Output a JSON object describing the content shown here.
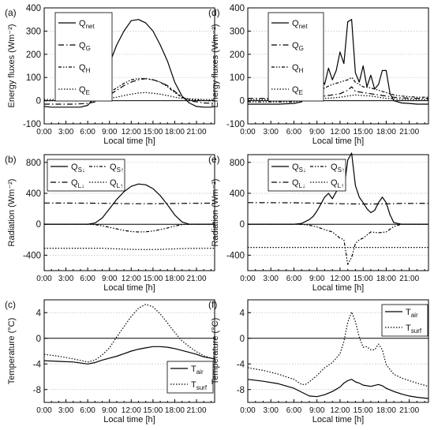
{
  "time_ticks": [
    "0:00",
    "3:00",
    "6:00",
    "9:00",
    "12:00",
    "15:00",
    "18:00",
    "21:00"
  ],
  "xlabel": "Local time [h]",
  "colors": {
    "line": "#000000",
    "grid": "#bdbdbd",
    "background": "#ffffff"
  },
  "chart_data": [
    {
      "panel": "(a)",
      "type": "line",
      "position": "top-left",
      "ylabel": "Energy fluxes (Wm⁻²)",
      "xlabel": "Local time [h]",
      "xlim": [
        0,
        23.5
      ],
      "ylim": [
        -100,
        400
      ],
      "yticks": [
        -100,
        0,
        100,
        200,
        300,
        400
      ],
      "grid": true,
      "legend_position": "top-left",
      "series": [
        {
          "name": "Q",
          "sub": "net",
          "style": "solid",
          "x": [
            0,
            1,
            2,
            3,
            4,
            5,
            6,
            7,
            8,
            9,
            10,
            11,
            12,
            13,
            14,
            15,
            16,
            17,
            18,
            19,
            20,
            21,
            22,
            23,
            23.5
          ],
          "values": [
            -25,
            -28,
            -28,
            -28,
            -28,
            -28,
            -20,
            15,
            80,
            160,
            240,
            300,
            345,
            350,
            335,
            300,
            240,
            170,
            80,
            20,
            -10,
            -25,
            -28,
            -28,
            -25
          ]
        },
        {
          "name": "Q",
          "sub": "G",
          "style": "dashdot",
          "x": [
            0,
            2,
            4,
            6,
            7,
            8,
            9,
            10,
            11,
            12,
            13,
            14,
            15,
            16,
            17,
            18,
            19,
            20,
            22,
            23.5
          ],
          "values": [
            -15,
            -15,
            -15,
            -12,
            -5,
            10,
            25,
            45,
            65,
            80,
            90,
            95,
            90,
            80,
            65,
            40,
            15,
            0,
            -10,
            -12
          ]
        },
        {
          "name": "Q",
          "sub": "H",
          "style": "dashdot2",
          "x": [
            0,
            2,
            4,
            6,
            7,
            8,
            9,
            10,
            11,
            12,
            13,
            14,
            15,
            16,
            17,
            18,
            19,
            20,
            22,
            23.5
          ],
          "values": [
            0,
            0,
            0,
            0,
            2,
            15,
            35,
            55,
            75,
            90,
            95,
            95,
            90,
            80,
            60,
            35,
            15,
            5,
            0,
            0
          ]
        },
        {
          "name": "Q",
          "sub": "E",
          "style": "dotted",
          "x": [
            0,
            2,
            4,
            6,
            7,
            8,
            9,
            10,
            11,
            12,
            13,
            14,
            15,
            16,
            17,
            18,
            19,
            20,
            22,
            23.5
          ],
          "values": [
            5,
            5,
            5,
            5,
            5,
            5,
            10,
            15,
            22,
            28,
            33,
            35,
            32,
            28,
            22,
            15,
            10,
            8,
            5,
            5
          ]
        }
      ]
    },
    {
      "panel": "(d)",
      "type": "line",
      "position": "top-right",
      "ylabel": "Energy fluxes (Wm⁻²)",
      "xlabel": "Local time [h]",
      "xlim": [
        0,
        23.5
      ],
      "ylim": [
        -100,
        400
      ],
      "yticks": [
        -100,
        0,
        100,
        200,
        300,
        400
      ],
      "grid": true,
      "legend_position": "top-left",
      "series": [
        {
          "name": "Q",
          "sub": "net",
          "style": "solid",
          "x": [
            0,
            2,
            4,
            6,
            7,
            7.5,
            8,
            8.5,
            9,
            9.5,
            10,
            10.5,
            11,
            11.5,
            12,
            12.5,
            13,
            13.5,
            14,
            14.5,
            15,
            15.5,
            16,
            16.5,
            17,
            17.5,
            18,
            18.5,
            19,
            20,
            21,
            22,
            23.5
          ],
          "values": [
            -15,
            -15,
            -15,
            -12,
            -5,
            20,
            50,
            20,
            60,
            100,
            70,
            140,
            90,
            130,
            210,
            160,
            340,
            350,
            120,
            80,
            150,
            60,
            110,
            50,
            70,
            130,
            130,
            30,
            0,
            -10,
            -12,
            -15,
            -15
          ]
        },
        {
          "name": "Q",
          "sub": "G",
          "style": "dashdot",
          "x": [
            0,
            2,
            4,
            6,
            7,
            8,
            9,
            10,
            11,
            12,
            13,
            13.5,
            14,
            15,
            16,
            17,
            18,
            19,
            20,
            22,
            23.5
          ],
          "values": [
            10,
            10,
            10,
            10,
            10,
            10,
            15,
            20,
            25,
            30,
            45,
            60,
            40,
            35,
            30,
            25,
            20,
            15,
            12,
            10,
            10
          ]
        },
        {
          "name": "Q",
          "sub": "H",
          "style": "dashdot2",
          "x": [
            0,
            2,
            4,
            6,
            7,
            8,
            9,
            10,
            11,
            12,
            13,
            13.5,
            14,
            15,
            16,
            17,
            18,
            19,
            20,
            22,
            23.5
          ],
          "values": [
            -5,
            -5,
            -5,
            -5,
            0,
            10,
            30,
            55,
            70,
            80,
            90,
            100,
            80,
            60,
            55,
            45,
            35,
            25,
            20,
            15,
            15
          ]
        },
        {
          "name": "Q",
          "sub": "E",
          "style": "dotted",
          "x": [
            0,
            2,
            4,
            6,
            7,
            8,
            9,
            10,
            11,
            12,
            13,
            14,
            15,
            16,
            17,
            18,
            19,
            20,
            22,
            23.5
          ],
          "values": [
            5,
            5,
            5,
            5,
            5,
            5,
            8,
            10,
            12,
            15,
            20,
            25,
            22,
            20,
            15,
            10,
            8,
            5,
            5,
            5
          ]
        }
      ]
    },
    {
      "panel": "(b)",
      "type": "line",
      "position": "middle-left",
      "ylabel": "Radiation (Wm⁻²)",
      "xlabel": "Local time [h]",
      "xlim": [
        0,
        23.5
      ],
      "ylim": [
        -600,
        900
      ],
      "yticks": [
        -400,
        0,
        400,
        800
      ],
      "grid": true,
      "legend_position": "top",
      "series": [
        {
          "name": "Q",
          "sub": "S↓",
          "style": "solid",
          "x": [
            0,
            6,
            7,
            8,
            9,
            10,
            11,
            12,
            13,
            14,
            15,
            16,
            17,
            18,
            19,
            20,
            23.5
          ],
          "values": [
            0,
            0,
            15,
            80,
            200,
            320,
            420,
            490,
            520,
            510,
            460,
            370,
            250,
            120,
            30,
            0,
            0
          ]
        },
        {
          "name": "Q",
          "sub": "L↓",
          "style": "dashdot",
          "x": [
            0,
            6,
            8,
            10,
            12,
            14,
            16,
            18,
            20,
            23.5
          ],
          "values": [
            275,
            272,
            270,
            268,
            265,
            265,
            266,
            268,
            270,
            272
          ]
        },
        {
          "name": "Q",
          "sub": "S↑",
          "style": "dashdot2",
          "x": [
            0,
            6,
            7,
            8,
            9,
            10,
            11,
            12,
            13,
            14,
            15,
            16,
            17,
            18,
            19,
            20,
            23.5
          ],
          "values": [
            0,
            0,
            -5,
            -20,
            -40,
            -60,
            -80,
            -95,
            -100,
            -98,
            -88,
            -70,
            -48,
            -24,
            -5,
            0,
            0
          ]
        },
        {
          "name": "Q",
          "sub": "L↑",
          "style": "dotted",
          "x": [
            0,
            6,
            8,
            10,
            12,
            14,
            16,
            18,
            20,
            23.5
          ],
          "values": [
            -310,
            -310,
            -310,
            -318,
            -325,
            -328,
            -325,
            -318,
            -312,
            -310
          ]
        }
      ]
    },
    {
      "panel": "(e)",
      "type": "line",
      "position": "middle-right",
      "ylabel": "Radiation (Wm⁻²)",
      "xlabel": "Local time [h]",
      "xlim": [
        0,
        23.5
      ],
      "ylim": [
        -600,
        900
      ],
      "yticks": [
        -400,
        0,
        400,
        800
      ],
      "grid": true,
      "legend_position": "top",
      "series": [
        {
          "name": "Q",
          "sub": "S↓",
          "style": "solid",
          "x": [
            0,
            6,
            7,
            8,
            8.5,
            9,
            9.5,
            10,
            10.5,
            11,
            11.5,
            12,
            12.5,
            13,
            13.5,
            14,
            14.5,
            15,
            15.5,
            16,
            16.5,
            17,
            17.5,
            18,
            18.5,
            19,
            20,
            23.5
          ],
          "values": [
            0,
            0,
            10,
            60,
            100,
            170,
            260,
            350,
            400,
            330,
            420,
            520,
            450,
            830,
            920,
            500,
            350,
            280,
            200,
            150,
            180,
            280,
            350,
            280,
            120,
            20,
            0,
            0
          ]
        },
        {
          "name": "Q",
          "sub": "L↓",
          "style": "dashdot",
          "x": [
            0,
            6,
            8,
            10,
            12,
            14,
            16,
            18,
            20,
            23.5
          ],
          "values": [
            280,
            278,
            275,
            270,
            265,
            262,
            262,
            264,
            268,
            270
          ]
        },
        {
          "name": "Q",
          "sub": "S↑",
          "style": "dashdot2",
          "x": [
            0,
            6,
            7,
            8,
            9,
            10,
            11,
            12,
            12.5,
            13,
            13.5,
            14,
            14.5,
            15,
            16,
            17,
            18,
            19,
            20,
            23.5
          ],
          "values": [
            0,
            0,
            -2,
            -12,
            -35,
            -70,
            -100,
            -180,
            -200,
            -520,
            -430,
            -250,
            -200,
            -180,
            -100,
            -110,
            -100,
            -30,
            0,
            0
          ]
        },
        {
          "name": "Q",
          "sub": "L↑",
          "style": "dotted",
          "x": [
            0,
            6,
            8,
            10,
            12,
            14,
            16,
            18,
            20,
            23.5
          ],
          "values": [
            -300,
            -300,
            -300,
            -300,
            -300,
            -300,
            -300,
            -300,
            -300,
            -300
          ]
        }
      ]
    },
    {
      "panel": "(c)",
      "type": "line",
      "position": "bottom-left",
      "ylabel": "Temperature (°C)",
      "xlabel": "Local time [h]",
      "xlim": [
        0,
        23.5
      ],
      "ylim": [
        -10,
        6
      ],
      "yticks": [
        -8,
        -4,
        0,
        4
      ],
      "grid": true,
      "legend_position": "bottom-right",
      "series": [
        {
          "name": "T",
          "sub": "air",
          "style": "solid",
          "x": [
            0,
            2,
            4,
            6,
            7,
            8,
            9,
            10,
            11,
            12,
            13,
            14,
            15,
            16,
            17,
            18,
            19,
            20,
            21,
            22,
            23.5
          ],
          "values": [
            -3.5,
            -3.6,
            -3.7,
            -4.0,
            -3.8,
            -3.4,
            -3.1,
            -2.8,
            -2.4,
            -2.0,
            -1.7,
            -1.5,
            -1.3,
            -1.3,
            -1.4,
            -1.6,
            -1.9,
            -2.2,
            -2.5,
            -2.9,
            -3.2
          ]
        },
        {
          "name": "T",
          "sub": "surf",
          "style": "dotted",
          "x": [
            0,
            2,
            4,
            6,
            7,
            8,
            9,
            10,
            11,
            12,
            13,
            14,
            15,
            16,
            17,
            18,
            19,
            20,
            21,
            22,
            23.5
          ],
          "values": [
            -2.5,
            -2.8,
            -3.2,
            -3.7,
            -3.4,
            -2.6,
            -1.5,
            0.2,
            1.8,
            3.4,
            4.7,
            5.3,
            4.9,
            3.8,
            2.4,
            0.9,
            -0.4,
            -1.3,
            -2.1,
            -2.7,
            -3.3
          ]
        }
      ]
    },
    {
      "panel": "(f)",
      "type": "line",
      "position": "bottom-right",
      "ylabel": "Temperature (°C)",
      "xlabel": "Local time [h]",
      "xlim": [
        0,
        23.5
      ],
      "ylim": [
        -10,
        6
      ],
      "yticks": [
        -8,
        -4,
        0,
        4
      ],
      "grid": true,
      "legend_position": "top-right",
      "series": [
        {
          "name": "T",
          "sub": "air",
          "style": "solid",
          "x": [
            0,
            2,
            4,
            6,
            7,
            8,
            9,
            10,
            11,
            12,
            12.5,
            13,
            13.5,
            14,
            14.5,
            15,
            16,
            17,
            17.5,
            18,
            19,
            20,
            21,
            22,
            23.5
          ],
          "values": [
            -6.4,
            -6.7,
            -7.1,
            -7.8,
            -8.4,
            -9.0,
            -9.1,
            -8.8,
            -8.3,
            -7.6,
            -7.0,
            -6.6,
            -6.4,
            -6.8,
            -7.0,
            -7.3,
            -7.5,
            -7.2,
            -7.4,
            -7.8,
            -8.3,
            -8.7,
            -9.0,
            -9.2,
            -9.4
          ]
        },
        {
          "name": "T",
          "sub": "surf",
          "style": "dotted",
          "x": [
            0,
            2,
            4,
            6,
            7,
            7.5,
            8,
            9,
            10,
            11,
            12,
            12.5,
            13,
            13.5,
            14,
            14.5,
            15,
            15.5,
            16,
            16.5,
            17,
            17.5,
            18,
            19,
            20,
            21,
            22,
            23.5
          ],
          "values": [
            -4.6,
            -5.0,
            -5.6,
            -6.4,
            -7.2,
            -7.2,
            -6.8,
            -5.8,
            -4.6,
            -3.8,
            -2.4,
            -0.5,
            2.5,
            4.1,
            2.6,
            0.2,
            -1.4,
            -1.3,
            -1.8,
            -1.8,
            -0.9,
            -1.8,
            -4.1,
            -5.6,
            -6.2,
            -6.6,
            -7.0,
            -7.5
          ]
        }
      ]
    }
  ]
}
